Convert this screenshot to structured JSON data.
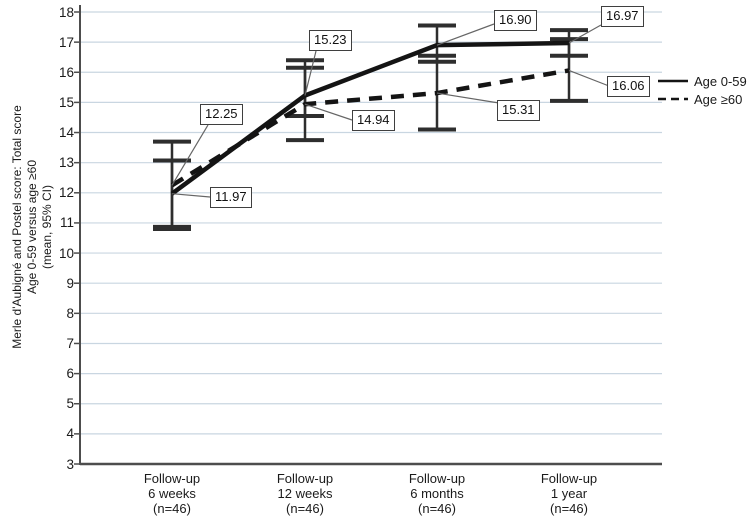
{
  "chart_data": {
    "type": "line",
    "title": "",
    "ylabel_lines": [
      "Merle d'Aubigné and Postel score: Total score",
      "Age 0-59 versus age ≥60",
      "(mean, 95% CI)"
    ],
    "xlabel": "",
    "ylim": [
      3,
      18
    ],
    "yticks": [
      3,
      4,
      5,
      6,
      7,
      8,
      9,
      10,
      11,
      12,
      13,
      14,
      15,
      16,
      17,
      18
    ],
    "grid": true,
    "legend_position": "right",
    "categories": [
      [
        "Follow-up",
        "6 weeks",
        "(n=46)"
      ],
      [
        "Follow-up",
        "12 weeks",
        "(n=46)"
      ],
      [
        "Follow-up",
        "6 months",
        "(n=46)"
      ],
      [
        "Follow-up",
        "1 year",
        "(n=46)"
      ]
    ],
    "series": [
      {
        "name": "Age 0-59",
        "line_style": "solid",
        "values": [
          11.97,
          15.23,
          16.9,
          16.97
        ],
        "value_labels": [
          "11.97",
          "15.23",
          "16.90",
          "16.97"
        ],
        "ci_low": [
          10.87,
          14.55,
          16.35,
          16.55
        ],
        "ci_high": [
          13.07,
          16.4,
          17.55,
          17.4
        ]
      },
      {
        "name": "Age ≥60",
        "line_style": "dashed",
        "values": [
          12.25,
          14.94,
          15.31,
          16.06
        ],
        "value_labels": [
          "12.25",
          "14.94",
          "15.31",
          "16.06"
        ],
        "ci_low": [
          10.8,
          13.75,
          14.1,
          15.05
        ],
        "ci_high": [
          13.7,
          16.15,
          16.55,
          17.1
        ]
      }
    ],
    "colors": {
      "line": "#141414",
      "error_bar": "#2e2e2e",
      "gridline": "#c9d6e1",
      "axis": "#4d4d4d",
      "connector": "#666666",
      "text": "#1a1a1a",
      "callout_border": "#3f3f3f",
      "background": "#ffffff"
    }
  }
}
